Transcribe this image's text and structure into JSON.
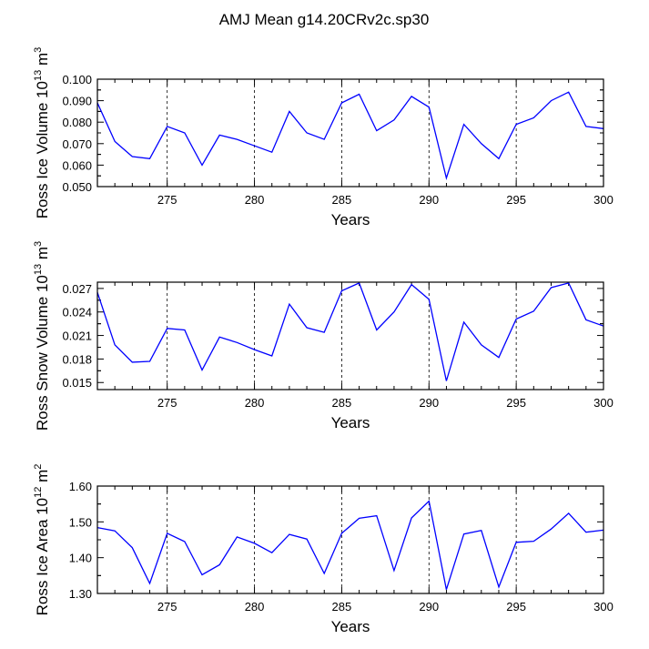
{
  "title": "AMJ Mean g14.20CRv2c.sp30",
  "colors": {
    "line": "#0000ff",
    "axis": "#000000",
    "grid": "#000000"
  },
  "chart_data": [
    {
      "type": "line",
      "xlabel": "Years",
      "ylabel_parts": [
        "Ross Ice Volume 10",
        "13",
        " m",
        "3"
      ],
      "xlim": [
        271,
        300
      ],
      "ylim": [
        0.05,
        0.1
      ],
      "xticks": [
        275,
        280,
        285,
        290,
        295,
        300
      ],
      "xtick_labels": [
        "275",
        "280",
        "285",
        "290",
        "295",
        "300"
      ],
      "yticks": [
        0.05,
        0.06,
        0.07,
        0.08,
        0.09,
        0.1
      ],
      "ytick_labels": [
        "0.050",
        "0.060",
        "0.070",
        "0.080",
        "0.090",
        "0.100"
      ],
      "grid": "vertical dashed at x ticks",
      "series": [
        {
          "x": [
            271,
            272,
            273,
            274,
            275,
            276,
            277,
            278,
            279,
            280,
            281,
            282,
            283,
            284,
            285,
            286,
            287,
            288,
            289,
            290,
            291,
            292,
            293,
            294,
            295,
            296,
            297,
            298,
            299,
            300
          ],
          "values": [
            0.089,
            0.071,
            0.064,
            0.063,
            0.078,
            0.075,
            0.06,
            0.074,
            0.072,
            0.069,
            0.066,
            0.085,
            0.075,
            0.072,
            0.089,
            0.093,
            0.076,
            0.081,
            0.092,
            0.087,
            0.054,
            0.079,
            0.07,
            0.063,
            0.079,
            0.082,
            0.09,
            0.094,
            0.078,
            0.077
          ]
        }
      ]
    },
    {
      "type": "line",
      "xlabel": "Years",
      "ylabel_parts": [
        "Ross Snow Volume 10",
        "13",
        " m",
        "3"
      ],
      "xlim": [
        271,
        300
      ],
      "ylim": [
        0.0141,
        0.0278
      ],
      "xticks": [
        275,
        280,
        285,
        290,
        295,
        300
      ],
      "xtick_labels": [
        "275",
        "280",
        "285",
        "290",
        "295",
        "300"
      ],
      "yticks": [
        0.015,
        0.018,
        0.021,
        0.024,
        0.027
      ],
      "ytick_labels": [
        "0.015",
        "0.018",
        "0.021",
        "0.024",
        "0.027"
      ],
      "grid": "vertical dashed at x ticks",
      "series": [
        {
          "x": [
            271,
            272,
            273,
            274,
            275,
            276,
            277,
            278,
            279,
            280,
            281,
            282,
            283,
            284,
            285,
            286,
            287,
            288,
            289,
            290,
            291,
            292,
            293,
            294,
            295,
            296,
            297,
            298,
            299,
            300
          ],
          "values": [
            0.0265,
            0.0198,
            0.0176,
            0.0177,
            0.0219,
            0.0217,
            0.0166,
            0.0208,
            0.0201,
            0.0192,
            0.0184,
            0.025,
            0.022,
            0.0214,
            0.0267,
            0.0277,
            0.0217,
            0.024,
            0.0275,
            0.0256,
            0.0152,
            0.0227,
            0.0198,
            0.0182,
            0.0231,
            0.0241,
            0.0271,
            0.0277,
            0.023,
            0.0222
          ]
        }
      ]
    },
    {
      "type": "line",
      "xlabel": "Years",
      "ylabel_parts": [
        "Ross Ice Area 10",
        "12",
        " m",
        "2"
      ],
      "xlim": [
        271,
        300
      ],
      "ylim": [
        1.3,
        1.6
      ],
      "xticks": [
        275,
        280,
        285,
        290,
        295,
        300
      ],
      "xtick_labels": [
        "275",
        "280",
        "285",
        "290",
        "295",
        "300"
      ],
      "yticks": [
        1.3,
        1.4,
        1.5,
        1.6
      ],
      "ytick_labels": [
        "1.30",
        "1.40",
        "1.50",
        "1.60"
      ],
      "grid": "vertical dashed at x ticks",
      "series": [
        {
          "x": [
            271,
            272,
            273,
            274,
            275,
            276,
            277,
            278,
            279,
            280,
            281,
            282,
            283,
            284,
            285,
            286,
            287,
            288,
            289,
            290,
            291,
            292,
            293,
            294,
            295,
            296,
            297,
            298,
            299,
            300
          ],
          "values": [
            1.484,
            1.475,
            1.428,
            1.328,
            1.468,
            1.445,
            1.352,
            1.38,
            1.458,
            1.44,
            1.414,
            1.465,
            1.452,
            1.356,
            1.468,
            1.51,
            1.517,
            1.364,
            1.511,
            1.558,
            1.311,
            1.466,
            1.476,
            1.318,
            1.443,
            1.446,
            1.48,
            1.524,
            1.471,
            1.477
          ]
        }
      ]
    }
  ]
}
